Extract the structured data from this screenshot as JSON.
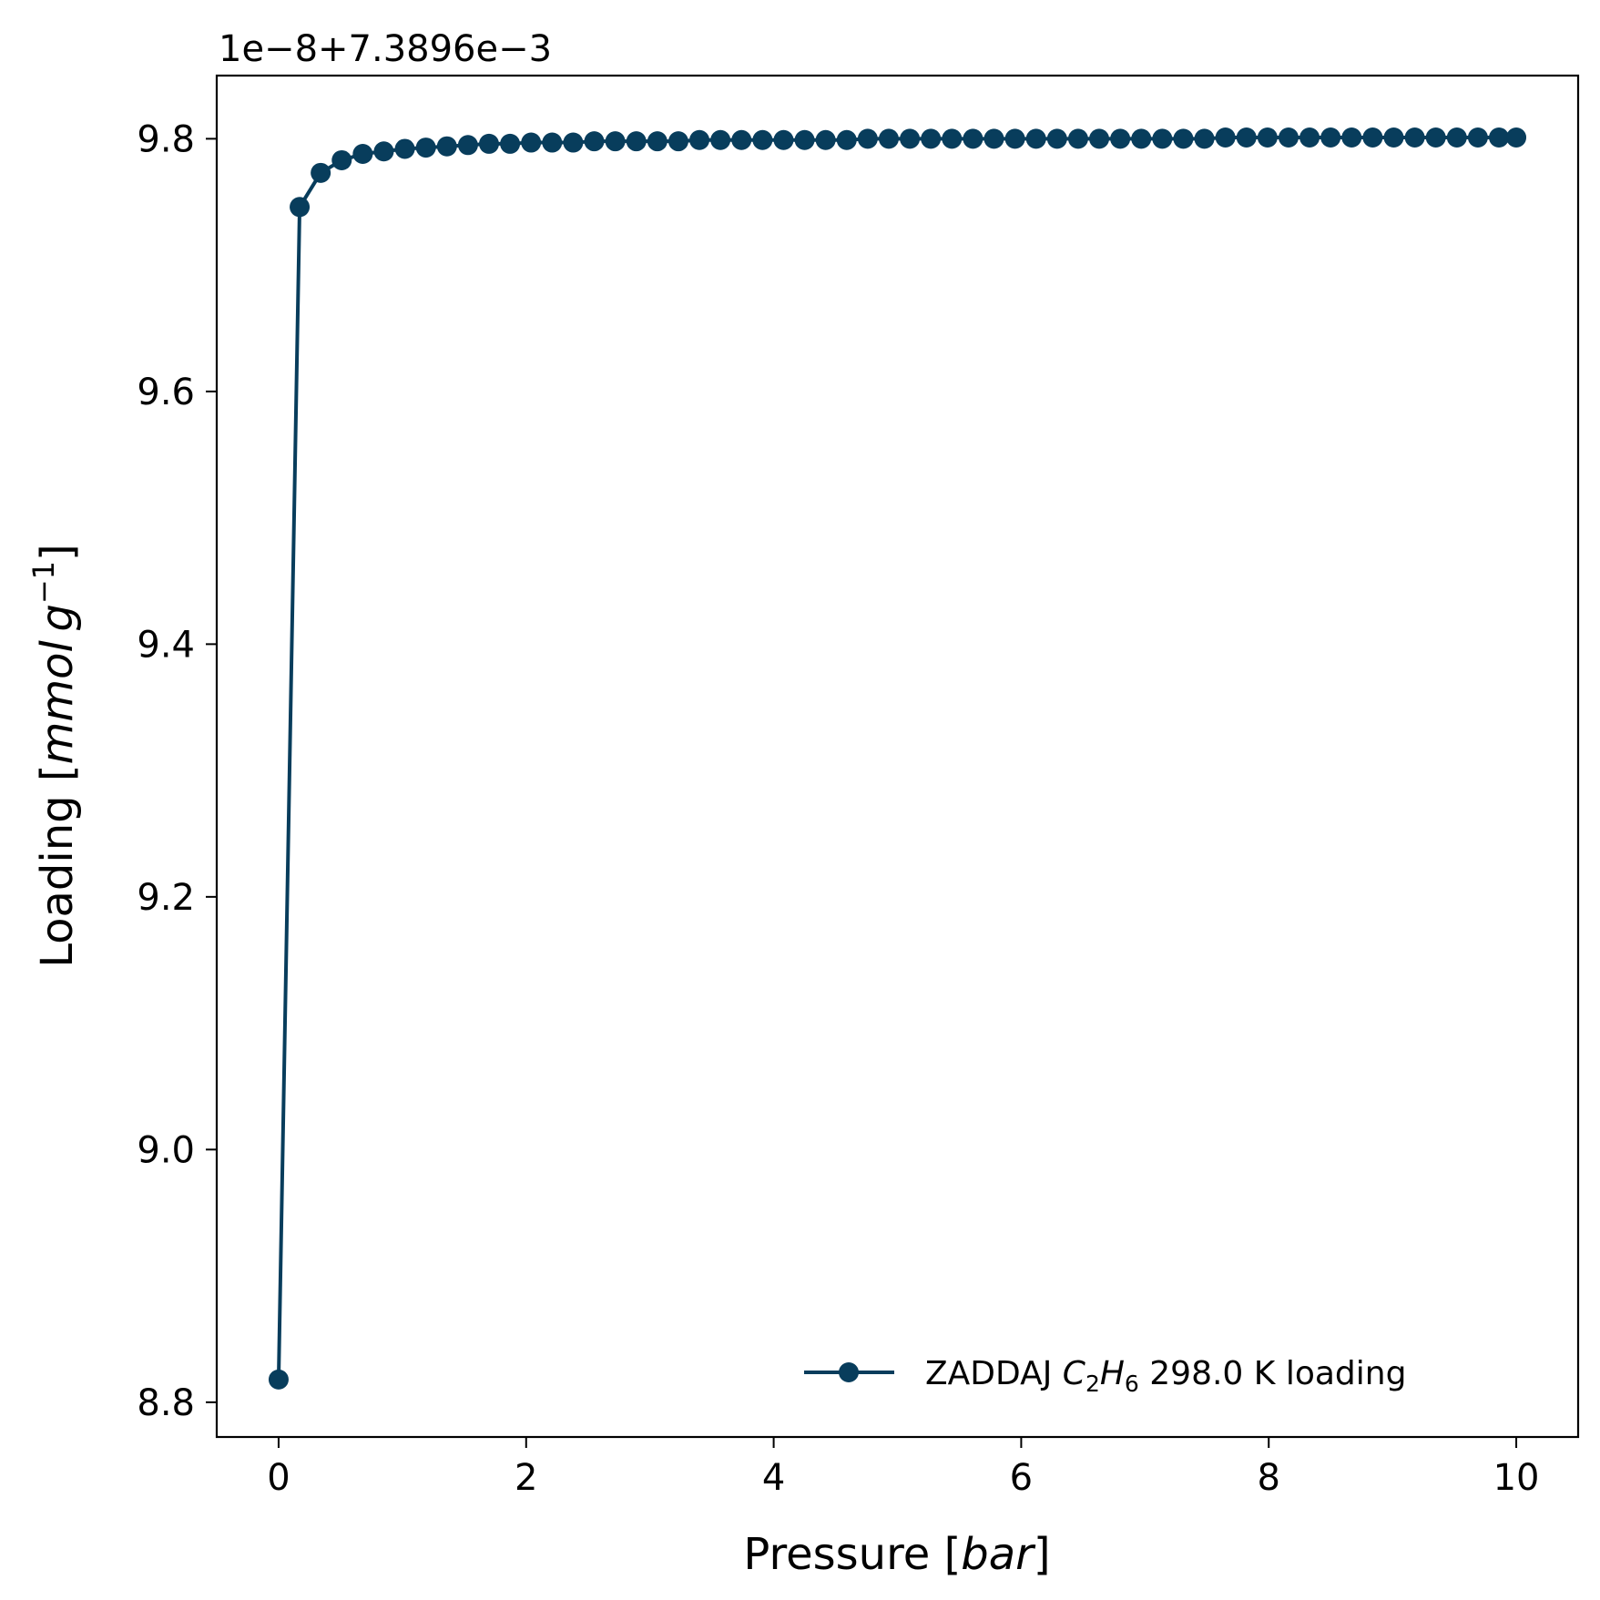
{
  "chart_data": {
    "type": "line",
    "title": "",
    "offset_text": "1e−8+7.3896e−3",
    "xlabel": {
      "prefix": "Pressure [",
      "italic": "bar",
      "suffix": "]"
    },
    "ylabel": {
      "prefix": "Loading [",
      "italic_main": "mmol g",
      "superscript": "−1",
      "suffix": "]"
    },
    "xlim": [
      -0.5,
      10.5
    ],
    "ylim": [
      8.7725,
      9.85
    ],
    "x_ticks": [
      0,
      2,
      4,
      6,
      8,
      10
    ],
    "x_tick_labels": [
      "0",
      "2",
      "4",
      "6",
      "8",
      "10"
    ],
    "y_ticks": [
      8.8,
      9.0,
      9.2,
      9.4,
      9.6,
      9.8
    ],
    "y_tick_labels": [
      "8.8",
      "9.0",
      "9.2",
      "9.4",
      "9.6",
      "9.8"
    ],
    "grid": false,
    "legend_position": "lower-right",
    "series": [
      {
        "name": {
          "prefix": "ZADDAJ ",
          "formula_c": "C",
          "formula_c_sub": "2",
          "formula_h": "H",
          "formula_h_sub": "6",
          "suffix": " 298.0 K loading"
        },
        "color": "#083d5c",
        "marker": "circle",
        "x": [
          0.0,
          0.17,
          0.34,
          0.51,
          0.68,
          0.85,
          1.02,
          1.19,
          1.36,
          1.53,
          1.7,
          1.87,
          2.04,
          2.21,
          2.38,
          2.55,
          2.72,
          2.89,
          3.06,
          3.23,
          3.4,
          3.57,
          3.74,
          3.91,
          4.08,
          4.25,
          4.42,
          4.59,
          4.76,
          4.93,
          5.1,
          5.27,
          5.44,
          5.61,
          5.78,
          5.95,
          6.12,
          6.29,
          6.46,
          6.63,
          6.8,
          6.97,
          7.14,
          7.31,
          7.48,
          7.65,
          7.82,
          7.99,
          8.16,
          8.33,
          8.5,
          8.67,
          8.84,
          9.01,
          9.18,
          9.35,
          9.52,
          9.69,
          9.86,
          10.0
        ],
        "y": [
          8.818,
          9.746,
          9.773,
          9.783,
          9.788,
          9.79,
          9.792,
          9.793,
          9.794,
          9.795,
          9.796,
          9.796,
          9.797,
          9.797,
          9.797,
          9.798,
          9.798,
          9.798,
          9.798,
          9.798,
          9.799,
          9.799,
          9.799,
          9.799,
          9.799,
          9.799,
          9.799,
          9.799,
          9.8,
          9.8,
          9.8,
          9.8,
          9.8,
          9.8,
          9.8,
          9.8,
          9.8,
          9.8,
          9.8,
          9.8,
          9.8,
          9.8,
          9.8,
          9.8,
          9.8,
          9.801,
          9.801,
          9.801,
          9.801,
          9.801,
          9.801,
          9.801,
          9.801,
          9.801,
          9.801,
          9.801,
          9.801,
          9.801,
          9.801,
          9.801
        ]
      }
    ]
  }
}
